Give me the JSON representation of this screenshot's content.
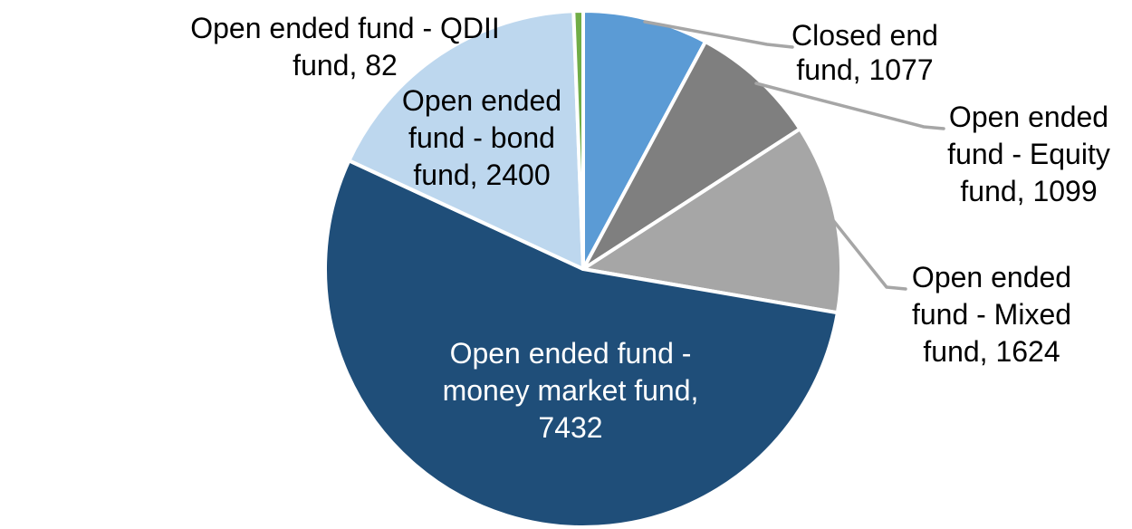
{
  "chart_data": {
    "type": "pie",
    "legend": "none",
    "background": "#FFFFFF",
    "start_angle_deg": 0,
    "direction": "clockwise",
    "slice_border_color": "#FFFFFF",
    "leader_line_color": "#A6A6A6",
    "outside_label_color": "#000000",
    "inside_label_color": "#FFFFFF",
    "slices": [
      {
        "name": "Closed end fund",
        "value": 1077,
        "color": "#5B9BD5",
        "data_label": "Closed end\nfund, 1077",
        "label_position": "outside",
        "leader_line": true
      },
      {
        "name": "Open ended fund - Equity fund",
        "value": 1099,
        "color": "#7F7F7F",
        "data_label": "Open ended\nfund - Equity\nfund, 1099",
        "label_position": "outside",
        "leader_line": true
      },
      {
        "name": "Open ended fund - Mixed fund",
        "value": 1624,
        "color": "#A6A6A6",
        "data_label": "Open ended\nfund - Mixed\nfund, 1624",
        "label_position": "outside",
        "leader_line": true
      },
      {
        "name": "Open ended fund - money market fund",
        "value": 7432,
        "color": "#1F4E79",
        "data_label": "Open ended fund -\nmoney market fund,\n7432",
        "label_position": "inside",
        "leader_line": false
      },
      {
        "name": "Open ended fund - bond fund",
        "value": 2400,
        "color": "#BDD7EE",
        "data_label": "Open ended\nfund - bond\nfund, 2400",
        "label_position": "outside",
        "leader_line": false
      },
      {
        "name": "Open ended fund - QDII fund",
        "value": 82,
        "color": "#70AD47",
        "data_label": "Open ended fund - QDII\nfund, 82",
        "label_position": "outside",
        "leader_line": false
      }
    ]
  }
}
